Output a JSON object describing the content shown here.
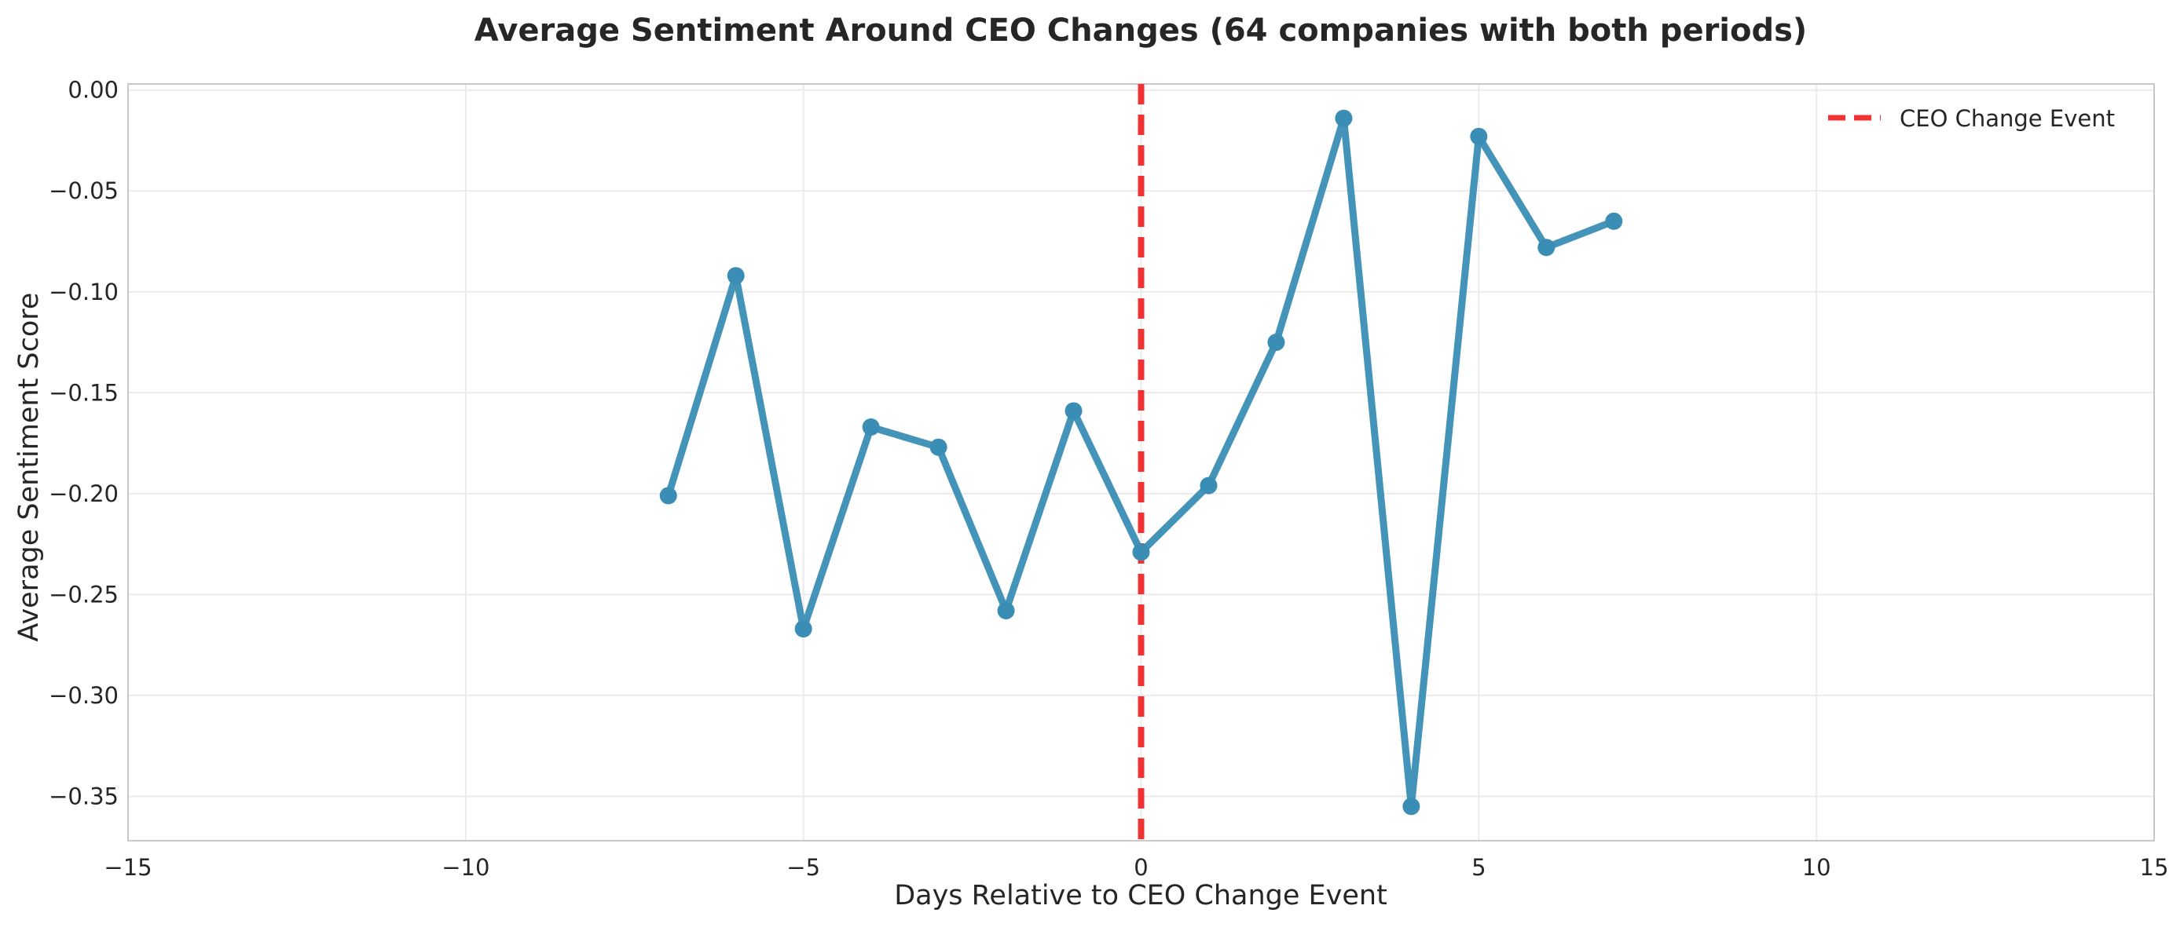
{
  "chart_data": {
    "type": "line",
    "title": "Average Sentiment Around CEO Changes (64 companies with both periods)",
    "xlabel": "Days Relative to CEO Change Event",
    "ylabel": "Average Sentiment Score",
    "xlim": [
      -15,
      15
    ],
    "ylim": [
      -0.372,
      0.003
    ],
    "x_ticks": [
      -15,
      -10,
      -5,
      0,
      5,
      10,
      15
    ],
    "x_tick_labels": [
      "−15",
      "−10",
      "−5",
      "0",
      "5",
      "10",
      "15"
    ],
    "y_ticks": [
      0.0,
      -0.05,
      -0.1,
      -0.15,
      -0.2,
      -0.25,
      -0.3,
      -0.35
    ],
    "y_tick_labels": [
      "0.00",
      "−0.05",
      "−0.10",
      "−0.15",
      "−0.20",
      "−0.25",
      "−0.30",
      "−0.35"
    ],
    "grid": true,
    "legend_position": "top-right",
    "series": [
      {
        "color": "#3a8db4",
        "x": [
          -7,
          -6,
          -5,
          -4,
          -3,
          -2,
          -1,
          0,
          1,
          2,
          3,
          4,
          5,
          6,
          7
        ],
        "y": [
          -0.201,
          -0.092,
          -0.267,
          -0.167,
          -0.177,
          -0.258,
          -0.159,
          -0.229,
          -0.196,
          -0.125,
          -0.014,
          -0.355,
          -0.023,
          -0.078,
          -0.065
        ]
      }
    ],
    "reference_lines": [
      {
        "name": "CEO Change Event",
        "orientation": "vertical",
        "x": 0,
        "color": "#f03232",
        "style": "dashed"
      }
    ]
  }
}
